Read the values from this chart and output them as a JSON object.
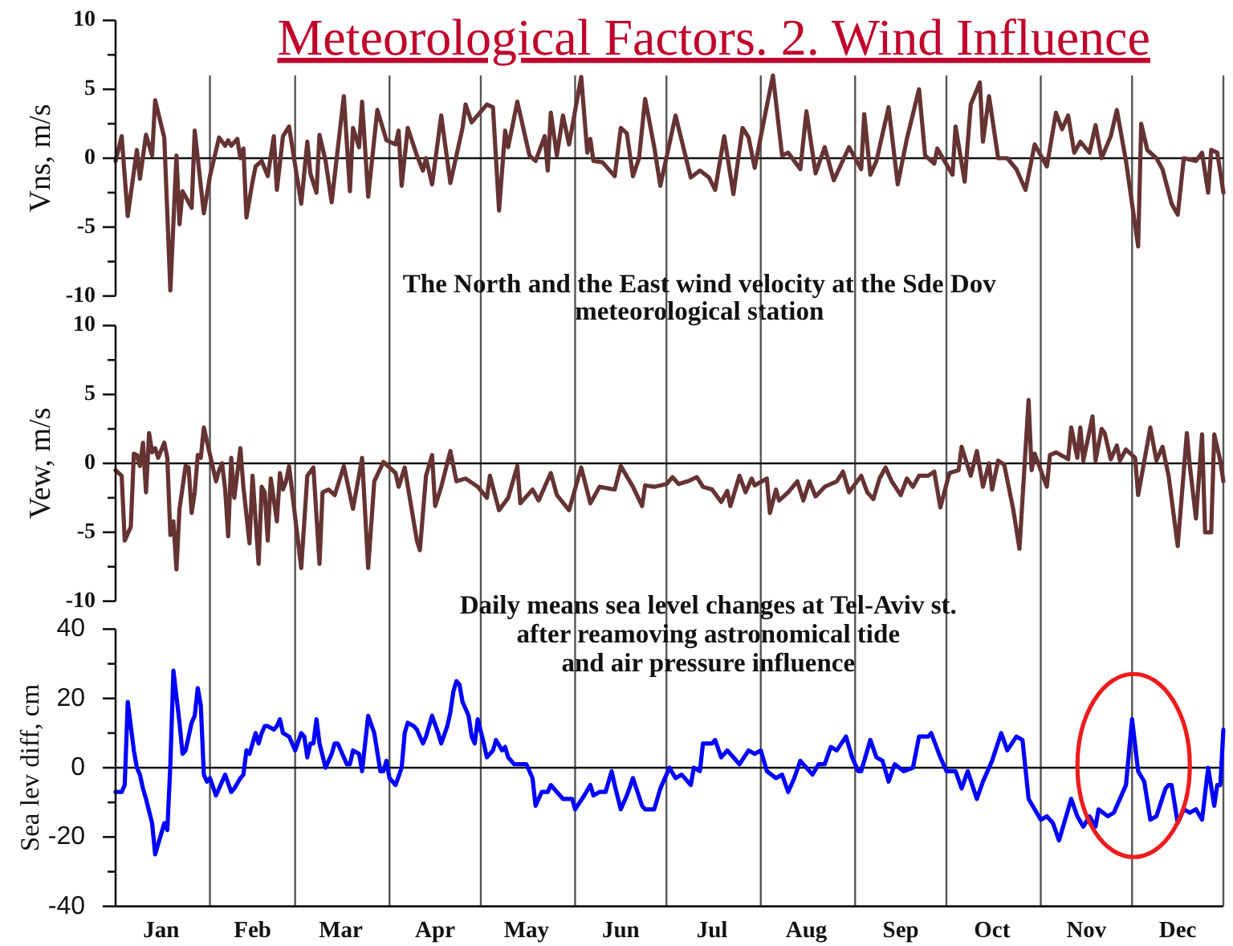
{
  "chart_data": [
    {
      "type": "line",
      "title": "Meteorological Factors. 2. Wind Influence",
      "ylabel": "Vns, m/s",
      "annotations": [
        "The North and the East wind velocity at the Sde Dov\nmeteorological station"
      ],
      "x": [
        "--01-01",
        "--01-03",
        "--01-05",
        "--01-08",
        "--01-09",
        "--01-11",
        "--01-13",
        "--01-14",
        "--01-17",
        "--01-19",
        "--01-21",
        "--01-22",
        "--01-23",
        "--01-24",
        "--01-26",
        "--01-27",
        "--01-30",
        "--02-01",
        "--02-04",
        "--02-06",
        "--02-07",
        "--02-08",
        "--02-10",
        "--02-11",
        "--02-12",
        "--02-13",
        "--02-15",
        "--02-16",
        "--02-18",
        "--02-20",
        "--02-22",
        "--02-23",
        "--02-25",
        "--02-27",
        "--03-03",
        "--03-05",
        "--03-06",
        "--03-08",
        "--03-09",
        "--03-11",
        "--03-13",
        "--03-17",
        "--03-19",
        "--03-20",
        "--03-22",
        "--03-23",
        "--03-25",
        "--03-28",
        "--03-31",
        "--04-03",
        "--04-04",
        "--04-05",
        "--04-07",
        "--04-10",
        "--04-12",
        "--04-13",
        "--04-15",
        "--04-18",
        "--04-21",
        "--04-25",
        "--04-26",
        "--04-28",
        "--05-03",
        "--05-05",
        "--05-07",
        "--05-09",
        "--05-10",
        "--05-13",
        "--05-17",
        "--05-19",
        "--05-22",
        "--05-23",
        "--05-24",
        "--05-26",
        "--05-28",
        "--05-30",
        "--06-03",
        "--06-05",
        "--06-06",
        "--06-07",
        "--06-10",
        "--06-14",
        "--06-16",
        "--06-18",
        "--06-20",
        "--06-22",
        "--06-24",
        "--06-27",
        "--06-29",
        "--07-04",
        "--07-09",
        "--07-12",
        "--07-15",
        "--07-17",
        "--07-20",
        "--07-23",
        "--07-26",
        "--07-28",
        "--07-30",
        "--08-02",
        "--08-05",
        "--08-08",
        "--08-10",
        "--08-14",
        "--08-16",
        "--08-19",
        "--08-22",
        "--08-25",
        "--08-30",
        "--09-03",
        "--09-04",
        "--09-06",
        "--09-08",
        "--09-12",
        "--09-15",
        "--09-18",
        "--09-22",
        "--09-24",
        "--09-27",
        "--09-28",
        "--10-03",
        "--10-04",
        "--10-07",
        "--10-09",
        "--10-12",
        "--10-13",
        "--10-15",
        "--10-18",
        "--10-21",
        "--10-24",
        "--10-27",
        "--10-30",
        "--11-03",
        "--11-06",
        "--11-08",
        "--11-10",
        "--11-12",
        "--11-14",
        "--11-17",
        "--11-19",
        "--11-21",
        "--11-24",
        "--11-26",
        "--11-29",
        "--12-03",
        "--12-04",
        "--12-06",
        "--12-09",
        "--12-11",
        "--12-14",
        "--12-16",
        "--12-18",
        "--12-22",
        "--12-24",
        "--12-26",
        "--12-27",
        "--12-29",
        "--12-30",
        "--12-31"
      ],
      "values": [
        -0.2,
        1.6,
        -4.2,
        0.6,
        -1.5,
        1.7,
        0.2,
        4.2,
        1.5,
        -9.6,
        0.2,
        -4.8,
        -2.4,
        -2.8,
        -3.6,
        2.0,
        -4.0,
        -1.3,
        1.5,
        0.9,
        1.3,
        0.9,
        1.4,
        0.0,
        0.7,
        -4.3,
        -1.7,
        -0.6,
        -0.2,
        -1.3,
        1.6,
        -2.3,
        1.6,
        2.3,
        -3.3,
        1.2,
        -1.1,
        -2.5,
        1.7,
        -0.2,
        -3.2,
        4.5,
        -2.4,
        2.2,
        0.8,
        4.1,
        -2.8,
        3.5,
        1.3,
        1.0,
        2.0,
        -2.0,
        2.2,
        0.2,
        -0.9,
        0.0,
        -1.9,
        3.1,
        -1.8,
        2.2,
        3.9,
        2.6,
        3.9,
        3.7,
        -3.8,
        2.0,
        0.8,
        4.1,
        0.2,
        -0.2,
        1.6,
        -0.9,
        3.3,
        0.2,
        3.1,
        1.0,
        5.9,
        0.4,
        1.4,
        -0.2,
        -0.3,
        -1.3,
        2.2,
        1.8,
        -1.3,
        0.0,
        4.3,
        0.8,
        -2.0,
        3.1,
        -1.4,
        -0.9,
        -1.4,
        -2.3,
        1.6,
        -2.6,
        2.2,
        1.5,
        -0.7,
        2.7,
        6.0,
        0.2,
        0.4,
        -0.8,
        3.4,
        -1.1,
        0.8,
        -1.6,
        0.8,
        -0.8,
        3.2,
        -1.2,
        -0.2,
        3.7,
        -1.9,
        1.4,
        5.0,
        0.2,
        -0.4,
        0.7,
        -1.2,
        2.3,
        -1.7,
        3.9,
        5.5,
        1.2,
        4.5,
        0.0,
        0.0,
        -0.8,
        -2.3,
        1.0,
        -0.6,
        3.3,
        2.1,
        3.1,
        0.4,
        1.2,
        0.4,
        2.4,
        0.0,
        1.6,
        3.5,
        -0.2,
        -6.4,
        2.5,
        0.6,
        0.0,
        -0.8,
        -3.3,
        -4.1,
        0.0,
        -0.2,
        0.4,
        -2.5,
        0.6,
        0.4,
        -1.0,
        -2.5
      ],
      "color": "#663333",
      "xlim": [
        "--01-01",
        "--12-31"
      ],
      "xticks": [
        {
          "value": "--02-01",
          "label": null
        },
        {
          "value": "--03-01",
          "label": null
        },
        {
          "value": "--04-01",
          "label": null
        },
        {
          "value": "--05-01",
          "label": null
        },
        {
          "value": "--06-01",
          "label": null
        },
        {
          "value": "--07-01",
          "label": null
        },
        {
          "value": "--08-01",
          "label": null
        },
        {
          "value": "--09-01",
          "label": null
        },
        {
          "value": "--10-01",
          "label": null
        },
        {
          "value": "--11-01",
          "label": null
        },
        {
          "value": "--12-01",
          "label": null
        },
        {
          "value": "--12-31",
          "label": null
        }
      ],
      "ylim": [
        -10,
        10
      ],
      "yticks": [
        -10,
        {
          "value": -7.5,
          "label": null
        },
        -5,
        {
          "value": -2.5,
          "label": null
        },
        0,
        {
          "value": 2.5,
          "label": null
        },
        5,
        {
          "value": 7.5,
          "label": null
        },
        10
      ],
      "grid": "x",
      "ref_lines": [
        {
          "axis": "y",
          "value": 0
        }
      ],
      "tick_labels": "y"
    },
    {
      "type": "line",
      "ylabel": "Vew, m/s",
      "x": [
        "--01-01",
        "--01-03",
        "--01-04",
        "--01-06",
        "--01-07",
        "--01-08",
        "--01-09",
        "--01-10",
        "--01-11",
        "--01-12",
        "--01-13",
        "--01-14",
        "--01-15",
        "--01-17",
        "--01-18",
        "--01-19",
        "--01-20",
        "--01-21",
        "--01-22",
        "--01-24",
        "--01-25",
        "--01-26",
        "--01-27",
        "--01-28",
        "--01-29",
        "--01-30",
        "--02-03",
        "--02-04",
        "--02-05",
        "--02-06",
        "--02-07",
        "--02-08",
        "--02-09",
        "--02-11",
        "--02-12",
        "--02-14",
        "--02-15",
        "--02-17",
        "--02-18",
        "--02-19",
        "--02-20",
        "--02-21",
        "--02-23",
        "--02-24",
        "--02-25",
        "--02-26",
        "--02-27",
        "--03-03",
        "--03-05",
        "--03-07",
        "--03-09",
        "--03-10",
        "--03-12",
        "--03-14",
        "--03-17",
        "--03-20",
        "--03-23",
        "--03-25",
        "--03-27",
        "--03-30",
        "--04-03",
        "--04-04",
        "--04-06",
        "--04-10",
        "--04-11",
        "--04-13",
        "--04-15",
        "--04-16",
        "--04-18",
        "--04-21",
        "--04-23",
        "--04-26",
        "--04-30",
        "--05-03",
        "--05-04",
        "--05-07",
        "--05-10",
        "--05-13",
        "--05-14",
        "--05-18",
        "--05-20",
        "--05-24",
        "--05-26",
        "--05-30",
        "--06-03",
        "--06-06",
        "--06-09",
        "--06-14",
        "--06-16",
        "--06-20",
        "--06-23",
        "--06-24",
        "--06-27",
        "--07-01",
        "--07-03",
        "--07-05",
        "--07-08",
        "--07-11",
        "--07-13",
        "--07-16",
        "--07-19",
        "--07-21",
        "--07-22",
        "--07-25",
        "--07-27",
        "--07-29",
        "--07-30",
        "--08-03",
        "--08-04",
        "--08-06",
        "--08-07",
        "--08-10",
        "--08-13",
        "--08-15",
        "--08-17",
        "--08-19",
        "--08-22",
        "--08-26",
        "--08-28",
        "--08-30",
        "--09-03",
        "--09-05",
        "--09-07",
        "--09-09",
        "--09-11",
        "--09-13",
        "--09-16",
        "--09-18",
        "--09-20",
        "--09-22",
        "--09-25",
        "--09-27",
        "--09-29",
        "--10-02",
        "--10-05",
        "--10-06",
        "--10-09",
        "--10-11",
        "--10-13",
        "--10-15",
        "--10-16",
        "--10-18",
        "--10-20",
        "--10-23",
        "--10-25",
        "--10-28",
        "--10-29",
        "--10-30",
        "--11-03",
        "--11-04",
        "--11-06",
        "--11-10",
        "--11-11",
        "--11-13",
        "--11-14",
        "--11-15",
        "--11-18",
        "--11-19",
        "--11-21",
        "--11-22",
        "--11-24",
        "--11-26",
        "--11-27",
        "--11-29",
        "--12-02",
        "--12-03",
        "--12-07",
        "--12-09",
        "--12-11",
        "--12-13",
        "--12-16",
        "--12-19",
        "--12-20",
        "--12-22",
        "--12-24",
        "--12-25",
        "--12-27",
        "--12-28",
        "--12-30",
        "--12-31"
      ],
      "values": [
        -0.5,
        -0.9,
        -5.6,
        -4.6,
        0.7,
        0.6,
        -0.2,
        1.5,
        -2.1,
        2.2,
        0.8,
        1.1,
        0.4,
        1.5,
        0.4,
        -5.2,
        -4.2,
        -7.7,
        -3.3,
        -0.2,
        -0.3,
        -3.6,
        -2.1,
        0.6,
        0.4,
        2.6,
        -1.3,
        -0.5,
        0.0,
        -1.9,
        -5.3,
        0.4,
        -2.5,
        1.1,
        -1.7,
        -5.8,
        -0.9,
        -7.3,
        -1.7,
        -2.1,
        -5.6,
        -1.1,
        -4.2,
        -0.7,
        -1.9,
        -1.3,
        -0.2,
        -7.6,
        -0.9,
        -0.3,
        -7.3,
        -2.1,
        -1.9,
        -2.3,
        -0.2,
        -3.3,
        0.4,
        -7.6,
        -1.3,
        0.1,
        -0.7,
        -1.7,
        -0.3,
        -5.6,
        -6.3,
        -0.9,
        0.6,
        -3.1,
        -1.7,
        0.9,
        -1.3,
        -1.1,
        -1.7,
        -2.5,
        -0.9,
        -3.4,
        -2.5,
        -0.2,
        -2.9,
        -1.9,
        -2.7,
        -0.7,
        -2.3,
        -3.4,
        -0.3,
        -2.9,
        -1.7,
        -1.9,
        -0.2,
        -1.7,
        -3.1,
        -1.6,
        -1.7,
        -1.5,
        -1.0,
        -1.5,
        -1.3,
        -1.0,
        -1.7,
        -1.9,
        -2.8,
        -2.0,
        -3.1,
        -0.9,
        -2.1,
        -1.1,
        -1.6,
        -1.1,
        -3.6,
        -1.9,
        -2.7,
        -2.1,
        -1.3,
        -2.7,
        -1.3,
        -2.4,
        -1.7,
        -1.3,
        -0.6,
        -2.1,
        -0.9,
        -2.1,
        -2.6,
        -1.1,
        -0.3,
        -1.3,
        -2.3,
        -1.1,
        -1.7,
        -0.9,
        -0.9,
        -0.6,
        -3.2,
        -0.7,
        -0.5,
        1.2,
        -0.9,
        0.9,
        -1.7,
        0.0,
        -1.9,
        0.2,
        -0.1,
        -3.4,
        -6.2,
        4.6,
        -0.5,
        0.7,
        -1.7,
        0.6,
        0.8,
        0.3,
        2.6,
        0.4,
        2.6,
        0.2,
        3.4,
        0.2,
        2.5,
        2.2,
        0.3,
        1.3,
        0.2,
        1.0,
        0.4,
        -2.3,
        2.6,
        0.2,
        1.2,
        -0.9,
        -6.0,
        2.2,
        -0.2,
        -4.0,
        2.1,
        -5.0,
        -5.0,
        2.1,
        0.2,
        -1.3
      ],
      "color": "#663333",
      "xlim": [
        "--01-01",
        "--12-31"
      ],
      "xticks": [
        {
          "value": "--02-01",
          "label": null
        },
        {
          "value": "--03-01",
          "label": null
        },
        {
          "value": "--04-01",
          "label": null
        },
        {
          "value": "--05-01",
          "label": null
        },
        {
          "value": "--06-01",
          "label": null
        },
        {
          "value": "--07-01",
          "label": null
        },
        {
          "value": "--08-01",
          "label": null
        },
        {
          "value": "--09-01",
          "label": null
        },
        {
          "value": "--10-01",
          "label": null
        },
        {
          "value": "--11-01",
          "label": null
        },
        {
          "value": "--12-01",
          "label": null
        },
        {
          "value": "--12-31",
          "label": null
        }
      ],
      "ylim": [
        -10,
        10
      ],
      "yticks": [
        -10,
        {
          "value": -7.5,
          "label": null
        },
        -5,
        {
          "value": -2.5,
          "label": null
        },
        0,
        {
          "value": 2.5,
          "label": null
        },
        5,
        {
          "value": 7.5,
          "label": null
        },
        10
      ],
      "grid": "x",
      "ref_lines": [
        {
          "axis": "y",
          "value": 0
        }
      ],
      "tick_labels": "y"
    },
    {
      "type": "line",
      "ylabel": "Sea lev diff, cm",
      "annotations": [
        "Daily means sea level changes at Tel-Aviv st.\nafter reamoving astronomical tide\nand air pressure influence"
      ],
      "x": [
        "--01-01",
        "--01-03",
        "--01-04",
        "--01-05",
        "--01-07",
        "--01-08",
        "--01-09",
        "--01-10",
        "--01-11",
        "--01-13",
        "--01-14",
        "--01-16",
        "--01-17",
        "--01-18",
        "--01-19",
        "--01-20",
        "--01-22",
        "--01-23",
        "--01-24",
        "--01-26",
        "--01-27",
        "--01-28",
        "--01-29",
        "--01-30",
        "--01-31",
        "--02-01",
        "--02-03",
        "--02-05",
        "--02-06",
        "--02-08",
        "--02-09",
        "--02-11",
        "--02-12",
        "--02-13",
        "--02-14",
        "--02-16",
        "--02-17",
        "--02-18",
        "--02-19",
        "--02-20",
        "--02-22",
        "--02-23",
        "--02-24",
        "--02-25",
        "--02-27",
        "--02-28",
        "--03-01",
        "--03-03",
        "--03-04",
        "--03-05",
        "--03-06",
        "--03-07",
        "--03-08",
        "--03-09",
        "--03-11",
        "--03-13",
        "--03-14",
        "--03-15",
        "--03-18",
        "--03-19",
        "--03-20",
        "--03-22",
        "--03-23",
        "--03-25",
        "--03-27",
        "--03-29",
        "--03-30",
        "--03-31",
        "--04-01",
        "--04-03",
        "--04-05",
        "--04-06",
        "--04-07",
        "--04-09",
        "--04-10",
        "--04-12",
        "--04-13",
        "--04-15",
        "--04-17",
        "--04-18",
        "--04-20",
        "--04-21",
        "--04-22",
        "--04-23",
        "--04-24",
        "--04-25",
        "--04-27",
        "--04-28",
        "--04-29",
        "--04-30",
        "--05-02",
        "--05-03",
        "--05-04",
        "--05-05",
        "--05-06",
        "--05-08",
        "--05-09",
        "--05-10",
        "--05-12",
        "--05-14",
        "--05-16",
        "--05-18",
        "--05-19",
        "--05-21",
        "--05-23",
        "--05-24",
        "--05-26",
        "--05-28",
        "--05-31",
        "--06-01",
        "--06-04",
        "--06-06",
        "--06-07",
        "--06-09",
        "--06-11",
        "--06-13",
        "--06-14",
        "--06-16",
        "--06-18",
        "--06-20",
        "--06-23",
        "--06-24",
        "--06-27",
        "--06-29",
        "--07-02",
        "--07-04",
        "--07-06",
        "--07-09",
        "--07-10",
        "--07-12",
        "--07-13",
        "--07-16",
        "--07-17",
        "--07-19",
        "--07-21",
        "--07-23",
        "--07-25",
        "--07-28",
        "--07-30",
        "--08-01",
        "--08-03",
        "--08-06",
        "--08-08",
        "--08-10",
        "--08-12",
        "--08-14",
        "--08-16",
        "--08-18",
        "--08-20",
        "--08-22",
        "--08-24",
        "--08-26",
        "--08-29",
        "--08-31",
        "--09-02",
        "--09-03",
        "--09-06",
        "--09-08",
        "--09-10",
        "--09-12",
        "--09-14",
        "--09-17",
        "--09-20",
        "--09-22",
        "--09-25",
        "--09-26",
        "--09-29",
        "--10-01",
        "--10-04",
        "--10-06",
        "--10-08",
        "--10-11",
        "--10-13",
        "--10-16",
        "--10-19",
        "--10-21",
        "--10-24",
        "--10-26",
        "--10-28",
        "--10-30",
        "--11-01",
        "--11-03",
        "--11-05",
        "--11-07",
        "--11-09",
        "--11-11",
        "--11-13",
        "--11-15",
        "--11-17",
        "--11-19",
        "--11-20",
        "--11-23",
        "--11-25",
        "--11-27",
        "--11-29",
        "--12-01",
        "--12-03",
        "--12-05",
        "--12-07",
        "--12-09",
        "--12-12",
        "--12-13",
        "--12-14",
        "--12-16",
        "--12-18",
        "--12-20",
        "--12-22",
        "--12-24",
        "--12-26",
        "--12-28",
        "--12-29",
        "--12-30",
        "--12-31"
      ],
      "values": [
        -7,
        -7,
        -5,
        19,
        5,
        0,
        -2,
        -6,
        -9,
        -16,
        -25,
        -19,
        -16,
        -18,
        1,
        28,
        13,
        4,
        5,
        13,
        15,
        23,
        18,
        -2,
        -4,
        -3,
        -8,
        -4,
        -2,
        -7,
        -6,
        -3,
        -2,
        5,
        4,
        10,
        7,
        10,
        12,
        12,
        11,
        12,
        14,
        10,
        9,
        7,
        5,
        10,
        9,
        3,
        7,
        7,
        14,
        7,
        0,
        4,
        7,
        7,
        1,
        1,
        5,
        4,
        -1,
        15,
        10,
        -1,
        -1,
        2,
        -3,
        -5,
        0,
        10,
        13,
        12,
        11,
        7,
        9,
        15,
        10,
        7,
        12,
        16,
        22,
        25,
        24,
        19,
        15,
        9,
        7,
        14,
        7,
        3,
        4,
        5,
        8,
        5,
        6,
        3,
        1,
        1,
        1,
        -3,
        -11,
        -7,
        -7,
        -5,
        -7,
        -9,
        -9,
        -12,
        -8,
        -5,
        -8,
        -7,
        -7,
        -1,
        -5,
        -12,
        -8,
        -3,
        -11,
        -12,
        -12,
        -6,
        0,
        -3,
        -2,
        -5,
        0,
        -1,
        7,
        7,
        8,
        3,
        5,
        3,
        1,
        5,
        4,
        5,
        -1,
        -3,
        -2,
        -7,
        -3,
        2,
        0,
        -2,
        1,
        1,
        6,
        5,
        9,
        3,
        -1,
        -1,
        8,
        3,
        2,
        -4,
        1,
        -1,
        0,
        9,
        9,
        10,
        3,
        -1,
        -1,
        -6,
        -1,
        -9,
        -4,
        2,
        10,
        5,
        9,
        8,
        -9,
        -12,
        -15,
        -14,
        -16,
        -21,
        -15,
        -9,
        -14,
        -17,
        -14,
        -17,
        -12,
        -14,
        -13,
        -9,
        -5,
        14,
        -1,
        -4,
        -15,
        -14,
        -6,
        -5,
        -5,
        -16,
        -12,
        -13,
        -12,
        -15,
        0,
        -11,
        -5,
        -5,
        11
      ],
      "color": "#0000ff",
      "xlim": [
        "--01-01",
        "--12-31"
      ],
      "xticks": [
        {
          "value": "--01-16",
          "label": "Jan"
        },
        {
          "value": "--02-01",
          "label": null
        },
        {
          "value": "--02-15",
          "label": "Feb"
        },
        {
          "value": "--03-01",
          "label": null
        },
        {
          "value": "--03-16",
          "label": "Mar"
        },
        {
          "value": "--04-01",
          "label": null
        },
        {
          "value": "--04-16",
          "label": "Apr"
        },
        {
          "value": "--05-01",
          "label": null
        },
        {
          "value": "--05-16",
          "label": "May"
        },
        {
          "value": "--06-01",
          "label": null
        },
        {
          "value": "--06-16",
          "label": "Jun"
        },
        {
          "value": "--07-01",
          "label": null
        },
        {
          "value": "--07-16",
          "label": "Jul"
        },
        {
          "value": "--08-01",
          "label": null
        },
        {
          "value": "--08-16",
          "label": "Aug"
        },
        {
          "value": "--09-01",
          "label": null
        },
        {
          "value": "--09-16",
          "label": "Sep"
        },
        {
          "value": "--10-01",
          "label": null
        },
        {
          "value": "--10-16",
          "label": "Oct"
        },
        {
          "value": "--11-01",
          "label": null
        },
        {
          "value": "--11-16",
          "label": "Nov"
        },
        {
          "value": "--12-01",
          "label": null
        },
        {
          "value": "--12-16",
          "label": "Dec"
        },
        {
          "value": "--12-31",
          "label": null
        }
      ],
      "ylim": [
        -40,
        40
      ],
      "yticks": [
        -40,
        {
          "value": -30,
          "label": null
        },
        -20,
        {
          "value": -10,
          "label": null
        },
        0,
        {
          "value": 10,
          "label": null
        },
        20,
        {
          "value": 30,
          "label": null
        },
        40
      ],
      "grid": "x",
      "ref_lines": [
        {
          "axis": "y",
          "value": 0
        }
      ]
    }
  ]
}
